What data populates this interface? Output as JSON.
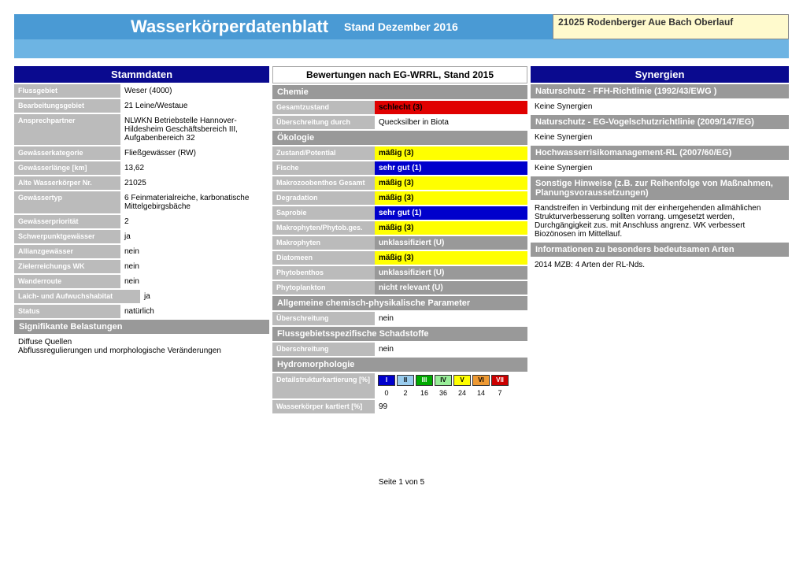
{
  "header": {
    "title": "Wasserkörperdatenblatt",
    "subtitle": "Stand Dezember 2016",
    "id": "21025 Rodenberger Aue Bach Oberlauf"
  },
  "stammdaten": {
    "title": "Stammdaten",
    "rows": [
      {
        "label": "Flussgebiet",
        "value": "Weser (4000)"
      },
      {
        "label": "Bearbeitungsgebiet",
        "value": "21 Leine/Westaue"
      },
      {
        "label": "Ansprechpartner",
        "value": "NLWKN Betriebstelle Hannover-Hildesheim Geschäftsbereich III, Aufgabenbereich 32"
      },
      {
        "label": "Gewässerkategorie",
        "value": "Fließgewässer (RW)"
      },
      {
        "label": "Gewässerlänge [km]",
        "value": "13,62"
      },
      {
        "label": "Alte Wasserkörper Nr.",
        "value": "21025"
      },
      {
        "label": "Gewässertyp",
        "value": "6 Feinmaterialreiche, karbonatische Mittelgebirgsbäche"
      },
      {
        "label": "Gewässerpriorität",
        "value": "2"
      },
      {
        "label": "Schwerpunktgewässer",
        "value": "ja"
      },
      {
        "label": "Allianzgewässer",
        "value": "nein"
      },
      {
        "label": "Zielerreichungs WK",
        "value": "nein"
      },
      {
        "label": "Wanderroute",
        "value": "nein"
      },
      {
        "label": "Laich- und Aufwuchshabitat",
        "value": "ja",
        "wide": true
      },
      {
        "label": "Status",
        "value": "natürlich"
      }
    ],
    "belastungen_header": "Signifikante Belastungen",
    "belastungen": "Diffuse Quellen\nAbflussregulierungen und morphologische Veränderungen"
  },
  "bewertungen": {
    "title": "Bewertungen nach EG-WRRL, Stand 2015",
    "chemie": {
      "header": "Chemie",
      "gesamt": {
        "label": "Gesamtzustand",
        "value": "schlecht (3)",
        "cls": "bg-red"
      },
      "ueber": {
        "label": "Überschreitung durch",
        "value": "Quecksilber in Biota"
      }
    },
    "oekologie": {
      "header": "Ökologie",
      "rows": [
        {
          "label": "Zustand/Potential",
          "value": "mäßig (3)",
          "cls": "bg-yellow"
        },
        {
          "label": "Fische",
          "value": "sehr gut (1)",
          "cls": "bg-blue"
        },
        {
          "label": "Makrozoobenthos Gesamt",
          "value": "mäßig (3)",
          "cls": "bg-yellow"
        },
        {
          "label": "Degradation",
          "value": "mäßig (3)",
          "cls": "bg-yellow"
        },
        {
          "label": "Saprobie",
          "value": "sehr gut (1)",
          "cls": "bg-blue"
        },
        {
          "label": "Makrophyten/Phytob.ges.",
          "value": "mäßig (3)",
          "cls": "bg-yellow"
        },
        {
          "label": "Makrophyten",
          "value": "unklassifiziert (U)",
          "cls": "bg-gray"
        },
        {
          "label": "Diatomeen",
          "value": "mäßig (3)",
          "cls": "bg-yellow"
        },
        {
          "label": "Phytobenthos",
          "value": "unklassifiziert (U)",
          "cls": "bg-gray"
        },
        {
          "label": "Phytoplankton",
          "value": "nicht relevant (U)",
          "cls": "bg-gray"
        }
      ]
    },
    "allg": {
      "header": "Allgemeine chemisch-physikalische Parameter",
      "label": "Überschreitung",
      "value": "nein"
    },
    "fluss": {
      "header": "Flussgebietsspezifische Schadstoffe",
      "label": "Überschreitung",
      "value": "nein"
    },
    "hydro": {
      "header": "Hydromorphologie",
      "detail_label": "Detailstrukturkartierung [%]",
      "legend": [
        "I",
        "II",
        "III",
        "IV",
        "V",
        "VI",
        "VII"
      ],
      "legend_cls": [
        "lc-blue",
        "lc-cyan",
        "lc-green",
        "lc-lgreen",
        "lc-yellow",
        "lc-orange",
        "lc-red"
      ],
      "nums": [
        "0",
        "2",
        "16",
        "36",
        "24",
        "14",
        "7"
      ],
      "kartiert_label": "Wasserkörper kartiert [%]",
      "kartiert_value": "99"
    }
  },
  "synergien": {
    "title": "Synergien",
    "sections": [
      {
        "header": "Naturschutz - FFH-Richtlinie (1992/43/EWG )",
        "body": "Keine Synergien"
      },
      {
        "header": "Naturschutz - EG-Vogelschutzrichtlinie (2009/147/EG)",
        "body": "Keine Synergien"
      },
      {
        "header": "Hochwasserrisikomanagement-RL (2007/60/EG)",
        "body": "Keine Synergien"
      },
      {
        "header": "Sonstige Hinweise (z.B. zur Reihenfolge von Maßnahmen, Planungsvoraussetzungen)",
        "body": "Randstreifen in Verbindung mit der einhergehenden allmählichen Strukturverbesserung sollten vorrang. umgesetzt werden, Durchgängigkeit zus. mit Anschluss angrenz. WK verbessert Biozönosen im Mittellauf."
      },
      {
        "header": "Informationen zu besonders bedeutsamen Arten",
        "body": "2014 MZB: 4 Arten der RL-Nds."
      }
    ]
  },
  "pagenum": "Seite 1 von 5"
}
